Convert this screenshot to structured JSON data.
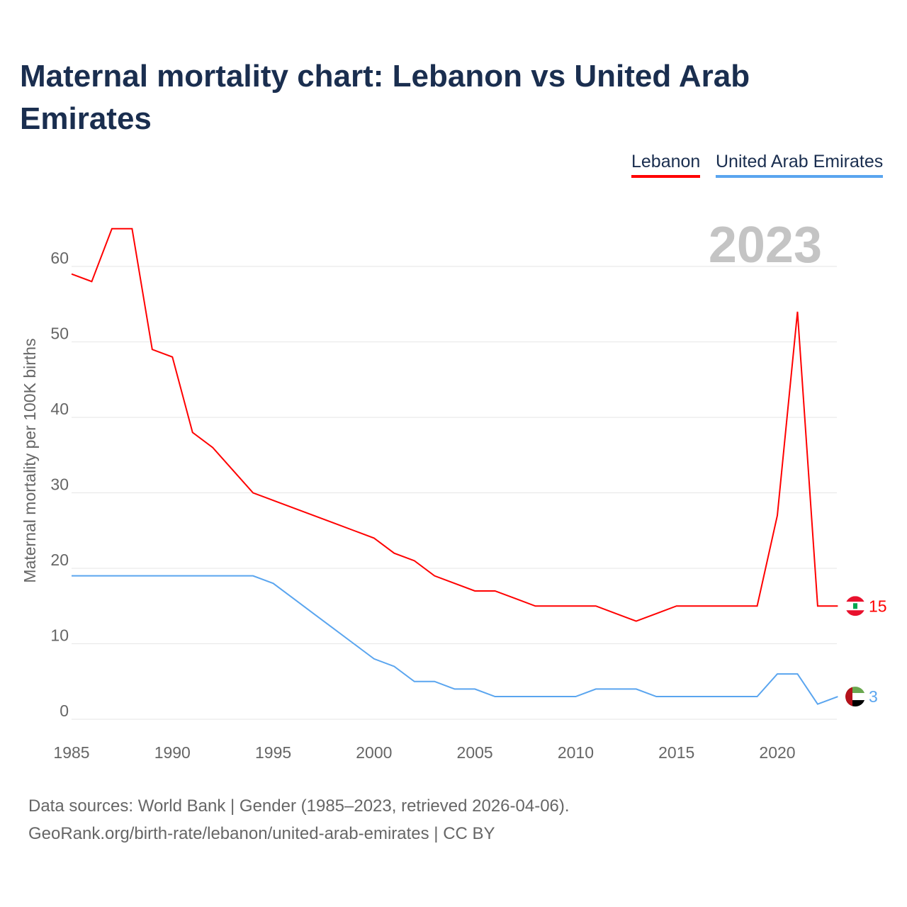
{
  "title": "Maternal mortality chart: Lebanon vs United Arab Emirates",
  "footer": {
    "line1": "Data sources: World Bank | Gender (1985–2023, retrieved 2026-04-06).",
    "line2": "GeoRank.org/birth-rate/lebanon/united-arab-emirates | CC BY"
  },
  "chart_data": {
    "type": "line",
    "title": "Maternal mortality chart: Lebanon vs United Arab Emirates",
    "ylabel": "Maternal mortality per 100K births",
    "xlabel": "",
    "year_label": "2023",
    "xlim": [
      1985,
      2023
    ],
    "ylim": [
      0,
      65
    ],
    "xticks": [
      1985,
      1990,
      1995,
      2000,
      2005,
      2010,
      2015,
      2020
    ],
    "yticks": [
      0,
      10,
      20,
      30,
      40,
      50,
      60
    ],
    "legend_position": "top-right",
    "x": [
      1985,
      1986,
      1987,
      1988,
      1989,
      1990,
      1991,
      1992,
      1993,
      1994,
      1995,
      1996,
      1997,
      1998,
      1999,
      2000,
      2001,
      2002,
      2003,
      2004,
      2005,
      2006,
      2007,
      2008,
      2009,
      2010,
      2011,
      2012,
      2013,
      2014,
      2015,
      2016,
      2017,
      2018,
      2019,
      2020,
      2021,
      2022,
      2023
    ],
    "series": [
      {
        "name": "Lebanon",
        "color": "#ff0000",
        "end_label": "15",
        "values": [
          59,
          58,
          65,
          65,
          49,
          48,
          38,
          36,
          33,
          30,
          29,
          28,
          27,
          26,
          25,
          24,
          22,
          21,
          19,
          18,
          17,
          17,
          16,
          15,
          15,
          15,
          15,
          14,
          13,
          14,
          15,
          15,
          15,
          15,
          15,
          27,
          54,
          15,
          15
        ]
      },
      {
        "name": "United Arab Emirates",
        "color": "#5aa5ef",
        "end_label": "3",
        "values": [
          19,
          19,
          19,
          19,
          19,
          19,
          19,
          19,
          19,
          19,
          18,
          16,
          14,
          12,
          10,
          8,
          7,
          5,
          5,
          4,
          4,
          3,
          3,
          3,
          3,
          3,
          4,
          4,
          4,
          3,
          3,
          3,
          3,
          3,
          3,
          6,
          6,
          2,
          3
        ]
      }
    ]
  }
}
